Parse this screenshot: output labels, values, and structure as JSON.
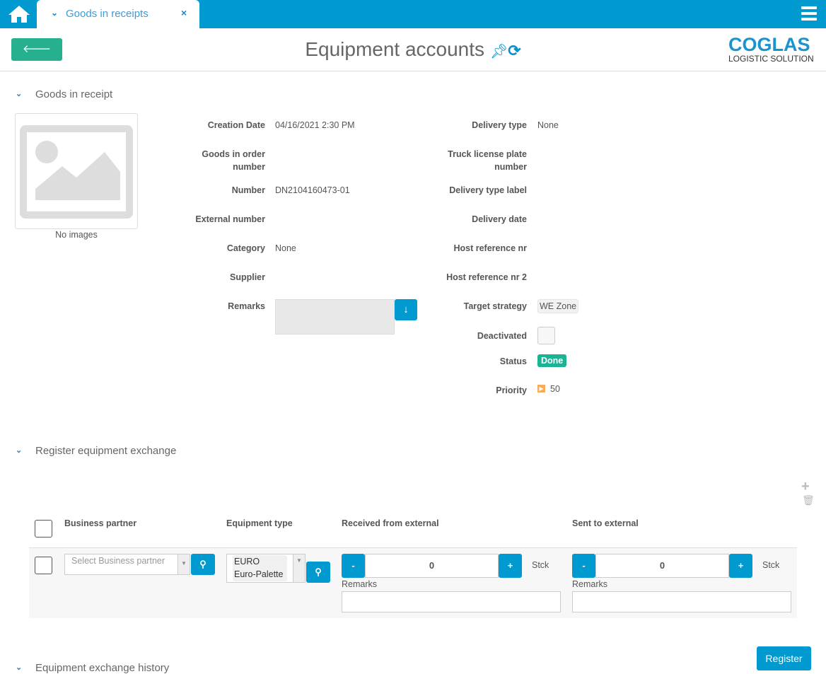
{
  "topbar": {
    "tab_label": "Goods in receipts",
    "home_icon": "home-icon",
    "menu_icon": "hamburger-icon"
  },
  "header": {
    "back_label": "Back",
    "title": "Equipment accounts",
    "logo_main": "COGLAS",
    "logo_sub": "LOGISTIC SOLUTION"
  },
  "goods": {
    "section_title": "Goods in receipt",
    "no_images": "No images",
    "left": [
      {
        "label": "Creation Date",
        "value": "04/16/2021 2:30 PM"
      },
      {
        "label": "Goods in order number",
        "value": ""
      },
      {
        "label": "Number",
        "value": "DN2104160473-01"
      },
      {
        "label": "External number",
        "value": ""
      },
      {
        "label": "Category",
        "value": "None"
      },
      {
        "label": "Supplier",
        "value": ""
      },
      {
        "label": "Remarks",
        "value": ""
      }
    ],
    "right": [
      {
        "label": "Delivery type",
        "value": "None"
      },
      {
        "label": "Truck license plate number",
        "value": ""
      },
      {
        "label": "Delivery type label",
        "value": ""
      },
      {
        "label": "Delivery date",
        "value": ""
      },
      {
        "label": "Host reference nr",
        "value": ""
      },
      {
        "label": "Host reference nr 2",
        "value": ""
      },
      {
        "label": "Target strategy",
        "value": "WE Zone"
      },
      {
        "label": "Deactivated",
        "value": ""
      },
      {
        "label": "Status",
        "value": "Done"
      },
      {
        "label": "Priority",
        "value": "50"
      }
    ]
  },
  "register": {
    "section_title": "Register equipment exchange",
    "columns": [
      "Business partner",
      "Equipment type",
      "Received from external",
      "Sent to external"
    ],
    "row": {
      "partner_placeholder": "Select Business partner",
      "equipment_code": "EURO",
      "equipment_name": "Euro-Palette",
      "received": "0",
      "sent": "0",
      "unit": "Stck",
      "remarks_label": "Remarks"
    },
    "register_label": "Register"
  },
  "history": {
    "section_title": "Equipment exchange history"
  },
  "colors": {
    "primary": "#0099d0",
    "success": "#26b08e",
    "status_done": "#1ab394",
    "priority": "#f8ac59"
  }
}
